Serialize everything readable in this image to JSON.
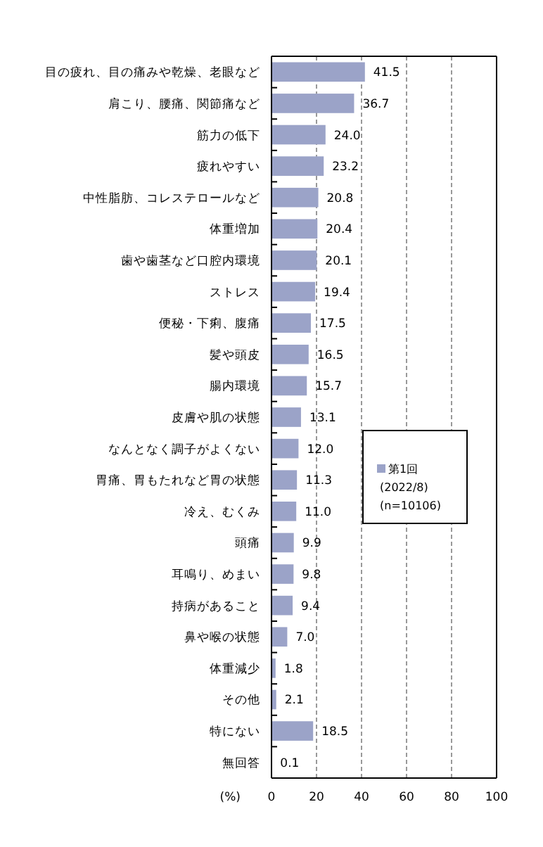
{
  "chart_data": {
    "type": "bar",
    "orientation": "horizontal",
    "categories": [
      "目の疲れ、目の痛みや乾燥、老眼など",
      "肩こり、腰痛、関節痛など",
      "筋力の低下",
      "疲れやすい",
      "中性脂肪、コレステロールなど",
      "体重増加",
      "歯や歯茎など口腔内環境",
      "ストレス",
      "便秘・下痢、腹痛",
      "髪や頭皮",
      "腸内環境",
      "皮膚や肌の状態",
      "なんとなく調子がよくない",
      "胃痛、胃もたれなど胃の状態",
      "冷え、むくみ",
      "頭痛",
      "耳鳴り、めまい",
      "持病があること",
      "鼻や喉の状態",
      "体重減少",
      "その他",
      "特にない",
      "無回答"
    ],
    "series": [
      {
        "name": "第1回\n(2022/8)\n(n=10106)",
        "color": "#9ba3c8",
        "values": [
          41.5,
          36.7,
          24.0,
          23.2,
          20.8,
          20.4,
          20.1,
          19.4,
          17.5,
          16.5,
          15.7,
          13.1,
          12.0,
          11.3,
          11.0,
          9.9,
          9.8,
          9.4,
          7.0,
          1.8,
          2.1,
          18.5,
          0.1
        ],
        "value_labels": [
          "41.5",
          "36.7",
          "24.0",
          "23.2",
          "20.8",
          "20.4",
          "20.1",
          "19.4",
          "17.5",
          "16.5",
          "15.7",
          "13.1",
          "12.0",
          "11.3",
          "11.0",
          "9.9",
          "9.8",
          "9.4",
          "7.0",
          "1.8",
          "2.1",
          "18.5",
          "0.1"
        ]
      }
    ],
    "xlim": [
      0,
      100
    ],
    "xticks": [
      0,
      20,
      40,
      60,
      80,
      100
    ],
    "xlabel": "(%)",
    "grid": "x",
    "legend": "right"
  }
}
